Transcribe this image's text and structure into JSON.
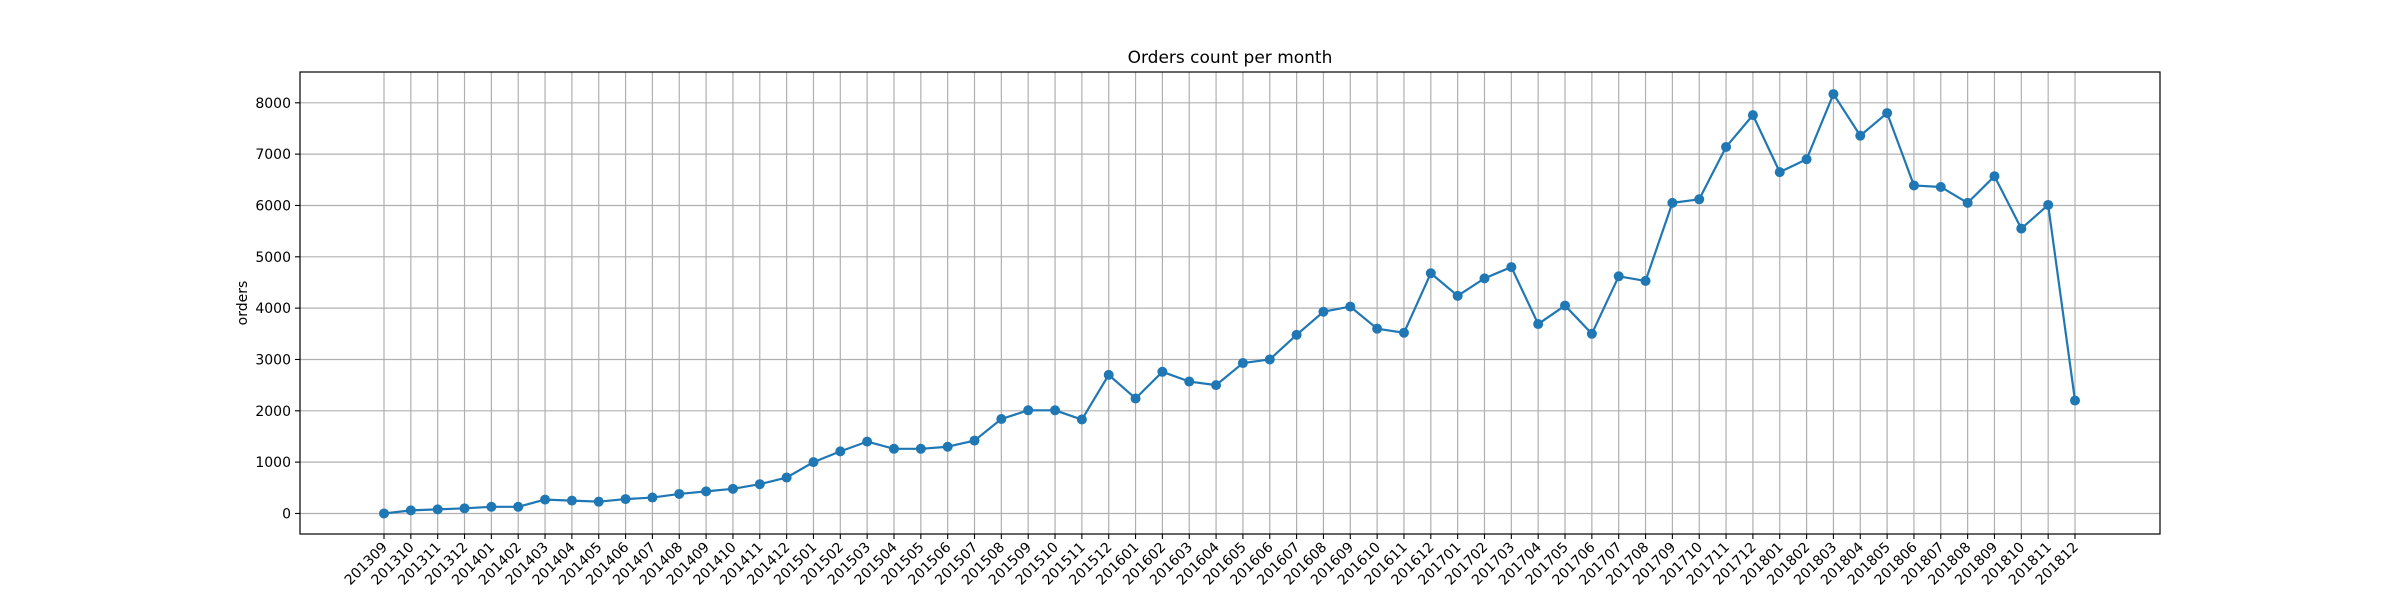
{
  "colors": {
    "series": "#1f77b4",
    "grid": "#b0b0b0",
    "background": "#ffffff"
  },
  "chart_data": {
    "type": "line",
    "title": "Orders count per month",
    "xlabel": "",
    "ylabel": "orders",
    "grid": true,
    "markers": "circle",
    "ylim": [
      -400,
      8600
    ],
    "yticks": [
      0,
      1000,
      2000,
      3000,
      4000,
      5000,
      6000,
      7000,
      8000
    ],
    "categories": [
      "201309",
      "201310",
      "201311",
      "201312",
      "201401",
      "201402",
      "201403",
      "201404",
      "201405",
      "201406",
      "201407",
      "201408",
      "201409",
      "201410",
      "201411",
      "201412",
      "201501",
      "201502",
      "201503",
      "201504",
      "201505",
      "201506",
      "201507",
      "201508",
      "201509",
      "201510",
      "201511",
      "201512",
      "201601",
      "201602",
      "201603",
      "201604",
      "201605",
      "201606",
      "201607",
      "201608",
      "201609",
      "201610",
      "201611",
      "201612",
      "201701",
      "201702",
      "201703",
      "201704",
      "201705",
      "201706",
      "201707",
      "201708",
      "201709",
      "201710",
      "201711",
      "201712",
      "201801",
      "201802",
      "201803",
      "201804",
      "201805",
      "201806",
      "201807",
      "201808",
      "201809",
      "201810",
      "201811",
      "201812"
    ],
    "series": [
      {
        "values": [
          0,
          60,
          80,
          100,
          130,
          130,
          270,
          250,
          230,
          280,
          310,
          380,
          430,
          480,
          570,
          700,
          1000,
          1210,
          1400,
          1260,
          1260,
          1300,
          1420,
          1840,
          2010,
          2010,
          1830,
          2700,
          2240,
          2760,
          2570,
          2500,
          2930,
          3000,
          3480,
          3930,
          4030,
          3600,
          3520,
          4680,
          4240,
          4580,
          4800,
          3690,
          4050,
          3500,
          4620,
          4530,
          6050,
          6120,
          7140,
          7760,
          6650,
          6900,
          8170,
          7360,
          7800,
          6390,
          6360,
          6050,
          6570,
          5550,
          6010,
          2200
        ]
      }
    ]
  }
}
